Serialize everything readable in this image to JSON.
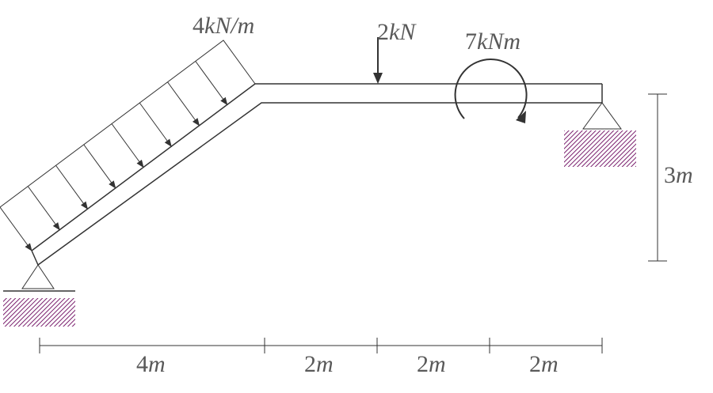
{
  "loads": {
    "distributed": {
      "value": "4",
      "unit": "kN/m"
    },
    "point": {
      "value": "2",
      "unit": "kN"
    },
    "moment": {
      "value": "7",
      "unit": "kNm"
    }
  },
  "dimensions": {
    "height": {
      "value": "3",
      "unit": "m"
    },
    "spans": [
      {
        "value": "4",
        "unit": "m"
      },
      {
        "value": "2",
        "unit": "m"
      },
      {
        "value": "2",
        "unit": "m"
      },
      {
        "value": "2",
        "unit": "m"
      }
    ]
  },
  "colors": {
    "line": "#333333",
    "text": "#595959",
    "hatch": "#7a1f6e"
  }
}
